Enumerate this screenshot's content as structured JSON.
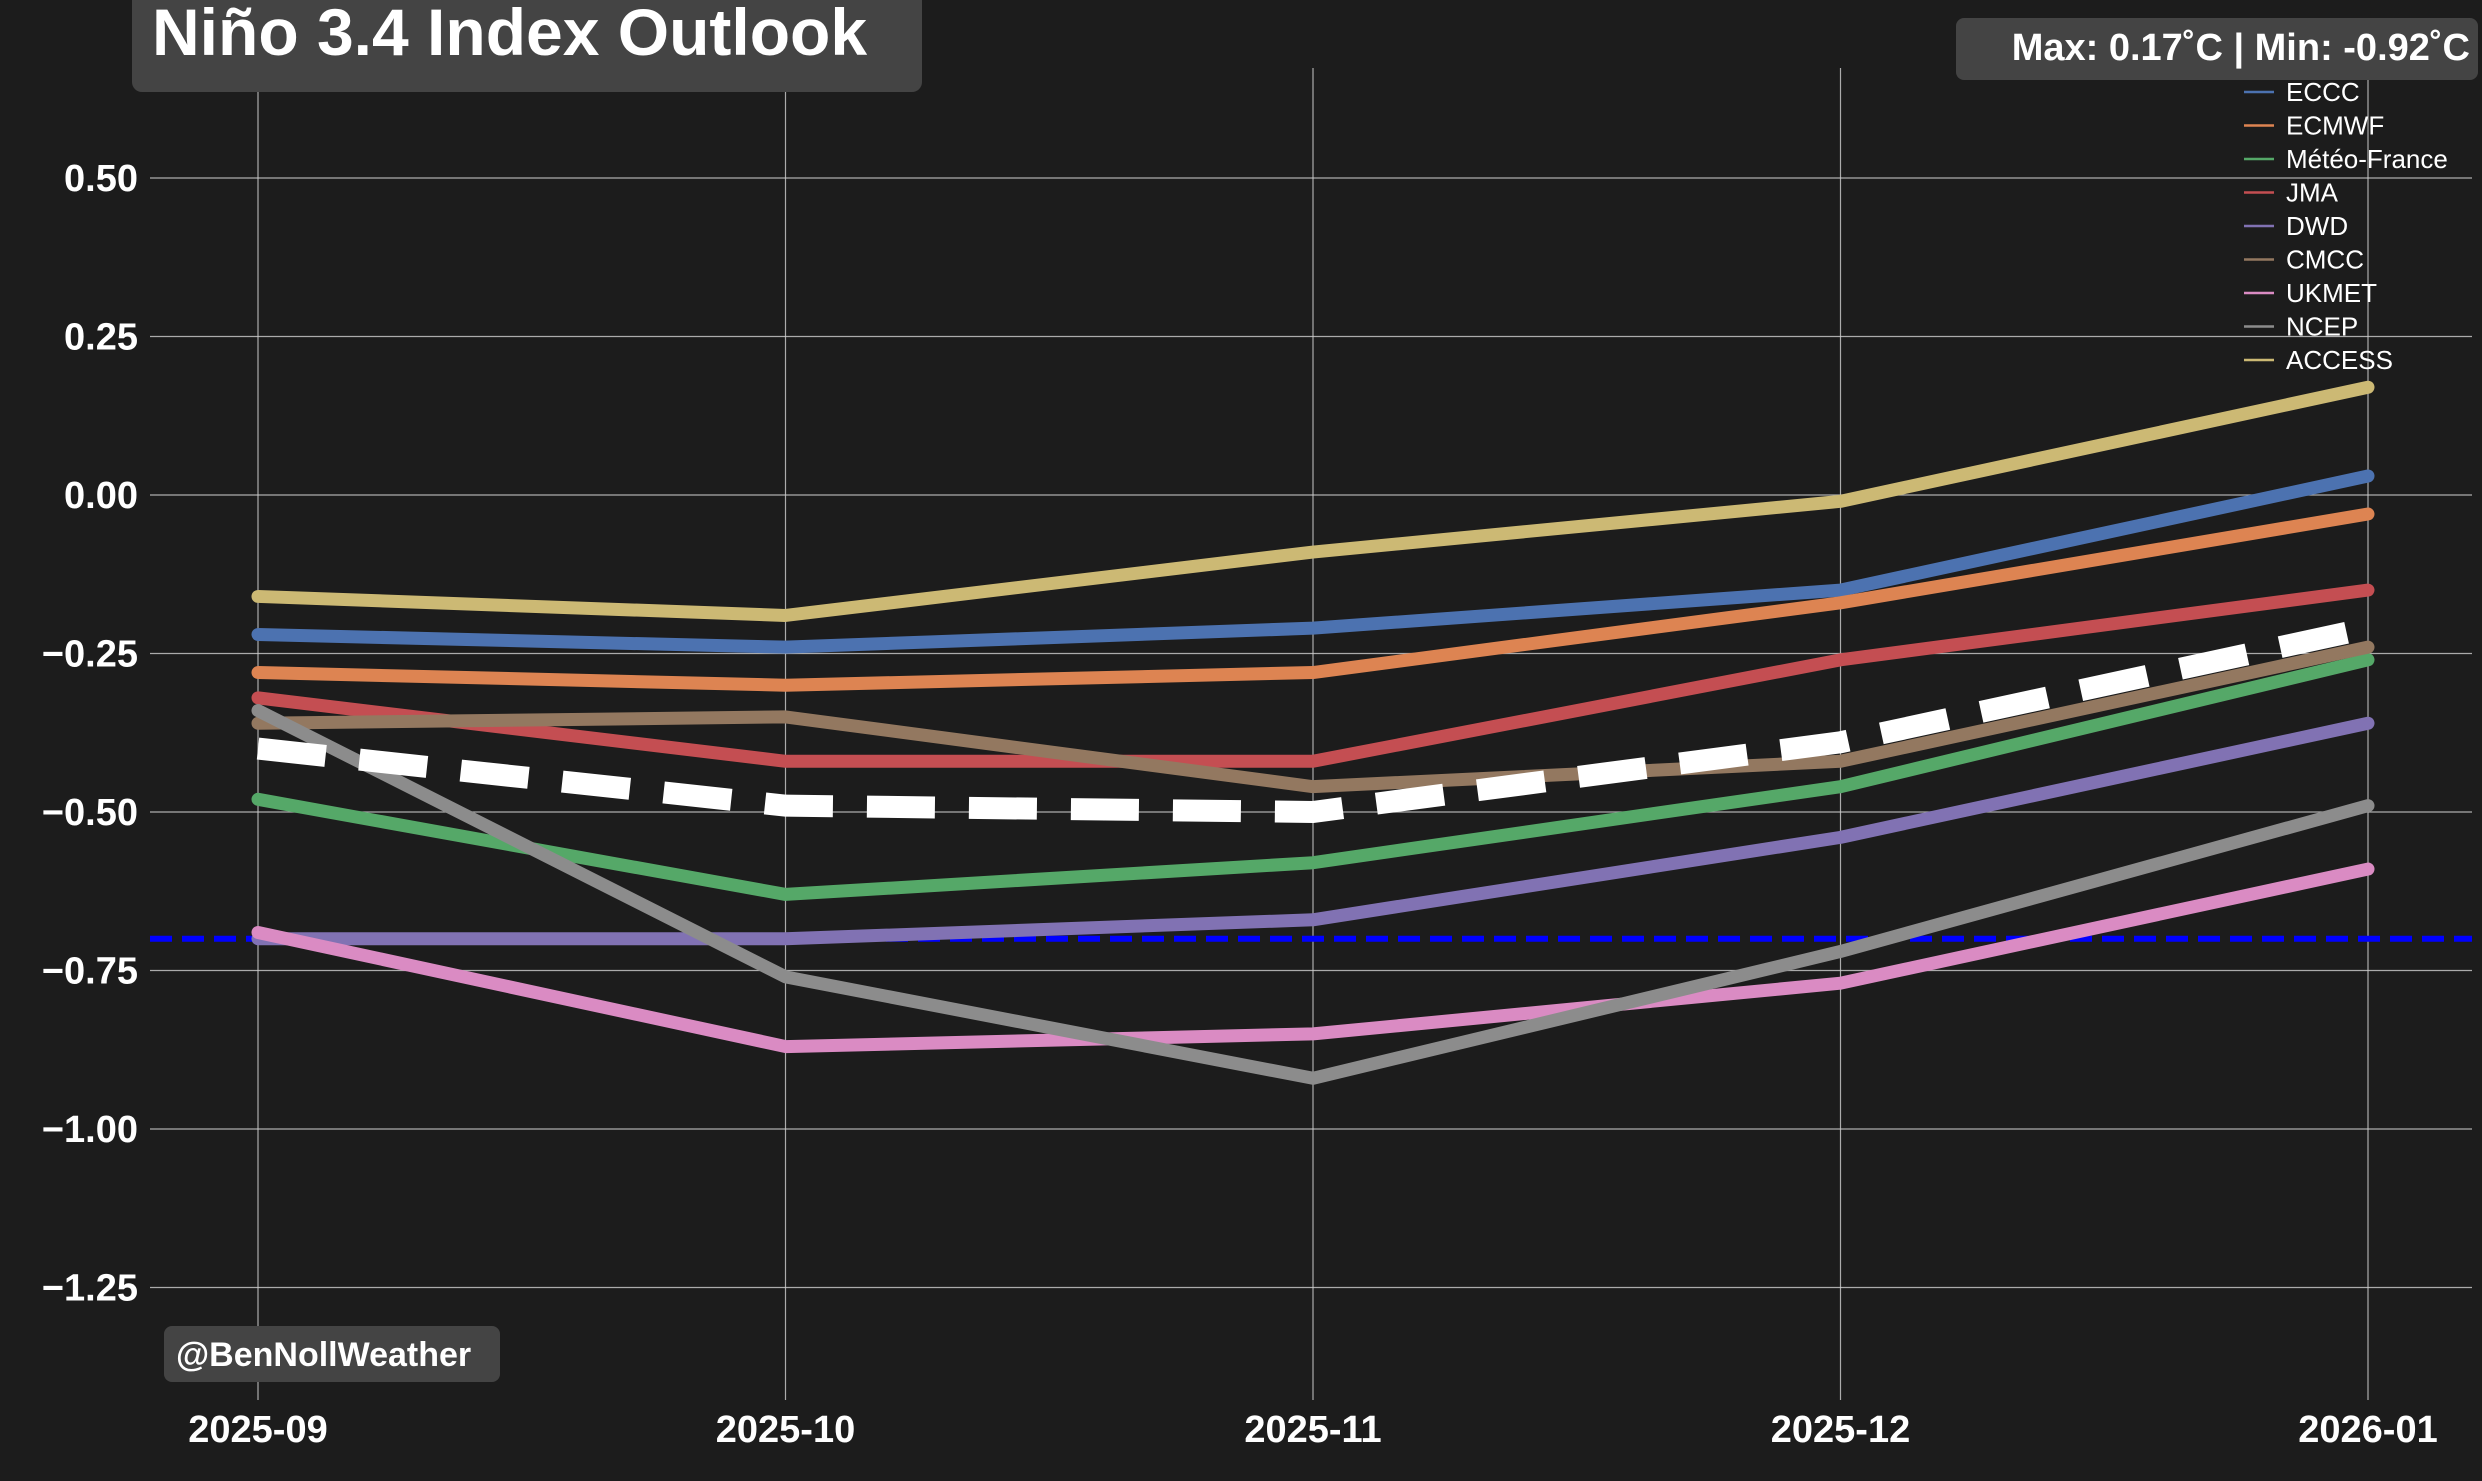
{
  "title": "Niño 3.4 Index Outlook",
  "stats_badge": "Max: 0.17˚C | Min: -0.92˚C",
  "watermark": "@BenNollWeather",
  "chart_data": {
    "type": "line",
    "title": "Niño 3.4 Index Outlook",
    "xlabel": "",
    "ylabel": "",
    "x": [
      "2025-09",
      "2025-10",
      "2025-11",
      "2025-12",
      "2026-01"
    ],
    "ylim": [
      -1.4,
      0.67
    ],
    "yticks": [
      0.5,
      0.25,
      0.0,
      -0.25,
      -0.5,
      -0.75,
      -1.0,
      -1.25
    ],
    "ytick_labels": [
      "0.50",
      "0.25",
      "0.00",
      "−0.25",
      "−0.50",
      "−0.75",
      "−1.00",
      "−1.25"
    ],
    "grid": true,
    "legend_position": "top-right",
    "series": [
      {
        "name": "ECCC",
        "color": "#4c72b0",
        "values": [
          -0.22,
          -0.24,
          -0.21,
          -0.15,
          0.03
        ]
      },
      {
        "name": "ECMWF",
        "color": "#dd8452",
        "values": [
          -0.28,
          -0.3,
          -0.28,
          -0.17,
          -0.03
        ]
      },
      {
        "name": "Météo-France",
        "color": "#55a868",
        "values": [
          -0.48,
          -0.63,
          -0.58,
          -0.46,
          -0.26
        ]
      },
      {
        "name": "JMA",
        "color": "#c44e52",
        "values": [
          -0.32,
          -0.42,
          -0.42,
          -0.26,
          -0.15
        ]
      },
      {
        "name": "DWD",
        "color": "#8172b3",
        "values": [
          -0.7,
          -0.7,
          -0.67,
          -0.54,
          -0.36
        ]
      },
      {
        "name": "CMCC",
        "color": "#937860",
        "values": [
          -0.36,
          -0.35,
          -0.46,
          -0.42,
          -0.24
        ]
      },
      {
        "name": "UKMET",
        "color": "#da8bc3",
        "values": [
          -0.69,
          -0.87,
          -0.85,
          -0.77,
          -0.59
        ]
      },
      {
        "name": "NCEP",
        "color": "#8c8c8c",
        "values": [
          -0.34,
          -0.76,
          -0.92,
          -0.72,
          -0.49
        ]
      },
      {
        "name": "ACCESS",
        "color": "#ccb974",
        "values": [
          -0.16,
          -0.19,
          -0.09,
          -0.01,
          0.17
        ]
      }
    ],
    "ensemble_mean": {
      "color": "#ffffff",
      "style": "dashed",
      "values": [
        -0.4,
        -0.49,
        -0.5,
        -0.39,
        -0.21
      ]
    },
    "reference_line": {
      "value": -0.7,
      "color": "#0000ff",
      "style": "dashed"
    }
  }
}
